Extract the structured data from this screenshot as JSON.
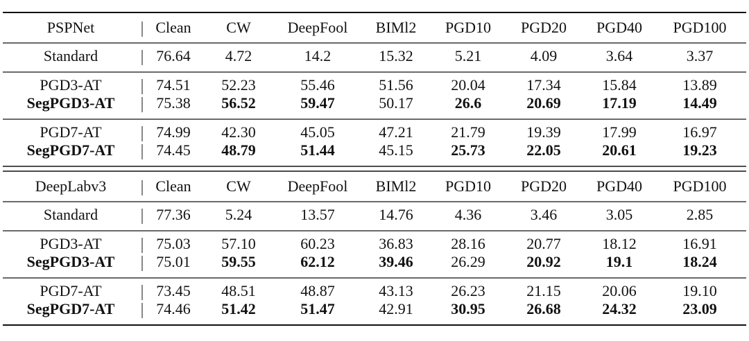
{
  "sections": [
    {
      "header": [
        "PSPNet",
        "Clean",
        "CW",
        "DeepFool",
        "BIMl2",
        "PGD10",
        "PGD20",
        "PGD40",
        "PGD100"
      ],
      "groups": [
        [
          {
            "cells": [
              "Standard",
              "76.64",
              "4.72",
              "14.2",
              "15.32",
              "5.21",
              "4.09",
              "3.64",
              "3.37"
            ],
            "bold": [
              false,
              false,
              false,
              false,
              false,
              false,
              false,
              false,
              false
            ]
          }
        ],
        [
          {
            "cells": [
              "PGD3-AT",
              "74.51",
              "52.23",
              "55.46",
              "51.56",
              "20.04",
              "17.34",
              "15.84",
              "13.89"
            ],
            "bold": [
              false,
              false,
              false,
              false,
              false,
              false,
              false,
              false,
              false
            ]
          },
          {
            "cells": [
              "SegPGD3-AT",
              "75.38",
              "56.52",
              "59.47",
              "50.17",
              "26.6",
              "20.69",
              "17.19",
              "14.49"
            ],
            "bold": [
              true,
              false,
              true,
              true,
              false,
              true,
              true,
              true,
              true
            ]
          }
        ],
        [
          {
            "cells": [
              "PGD7-AT",
              "74.99",
              "42.30",
              "45.05",
              "47.21",
              "21.79",
              "19.39",
              "17.99",
              "16.97"
            ],
            "bold": [
              false,
              false,
              false,
              false,
              false,
              false,
              false,
              false,
              false
            ]
          },
          {
            "cells": [
              "SegPGD7-AT",
              "74.45",
              "48.79",
              "51.44",
              "45.15",
              "25.73",
              "22.05",
              "20.61",
              "19.23"
            ],
            "bold": [
              true,
              false,
              true,
              true,
              false,
              true,
              true,
              true,
              true
            ]
          }
        ]
      ]
    },
    {
      "header": [
        "DeepLabv3",
        "Clean",
        "CW",
        "DeepFool",
        "BIMl2",
        "PGD10",
        "PGD20",
        "PGD40",
        "PGD100"
      ],
      "groups": [
        [
          {
            "cells": [
              "Standard",
              "77.36",
              "5.24",
              "13.57",
              "14.76",
              "4.36",
              "3.46",
              "3.05",
              "2.85"
            ],
            "bold": [
              false,
              false,
              false,
              false,
              false,
              false,
              false,
              false,
              false
            ]
          }
        ],
        [
          {
            "cells": [
              "PGD3-AT",
              "75.03",
              "57.10",
              "60.23",
              "36.83",
              "28.16",
              "20.77",
              "18.12",
              "16.91"
            ],
            "bold": [
              false,
              false,
              false,
              false,
              false,
              false,
              false,
              false,
              false
            ]
          },
          {
            "cells": [
              "SegPGD3-AT",
              "75.01",
              "59.55",
              "62.12",
              "39.46",
              "26.29",
              "20.92",
              "19.1",
              "18.24"
            ],
            "bold": [
              true,
              false,
              true,
              true,
              true,
              false,
              true,
              true,
              true
            ]
          }
        ],
        [
          {
            "cells": [
              "PGD7-AT",
              "73.45",
              "48.51",
              "48.87",
              "43.13",
              "26.23",
              "21.15",
              "20.06",
              "19.10"
            ],
            "bold": [
              false,
              false,
              false,
              false,
              false,
              false,
              false,
              false,
              false
            ]
          },
          {
            "cells": [
              "SegPGD7-AT",
              "74.46",
              "51.42",
              "51.47",
              "42.91",
              "30.95",
              "26.68",
              "24.32",
              "23.09"
            ],
            "bold": [
              true,
              false,
              true,
              true,
              false,
              true,
              true,
              true,
              true
            ]
          }
        ]
      ]
    }
  ]
}
